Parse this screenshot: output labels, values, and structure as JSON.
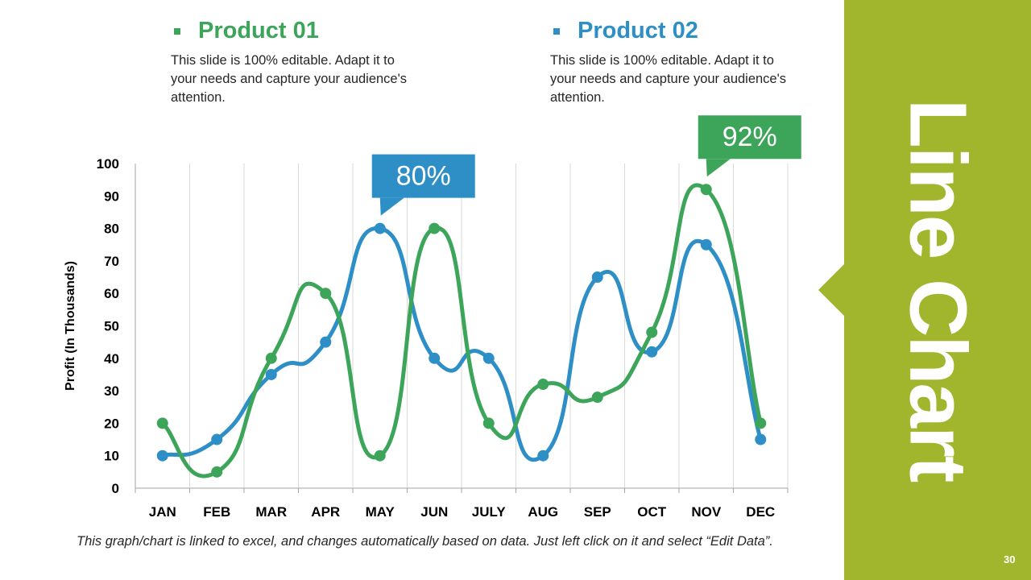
{
  "legend": [
    {
      "title": "Product 01",
      "color": "#3da55a",
      "desc": "This slide is 100% editable. Adapt it to your needs and capture your audience's attention."
    },
    {
      "title": "Product 02",
      "color": "#2e8fc6",
      "desc": "This slide is 100% editable. Adapt it to your needs and capture your audience's attention."
    }
  ],
  "side_title": "Line Chart",
  "page_number": "30",
  "footnote": "This graph/chart is linked to excel, and changes automatically based on data. Just left click on it and select “Edit Data”.",
  "chart_data": {
    "type": "line",
    "title": "",
    "xlabel": "",
    "ylabel": "Profit (In Thousands)",
    "ylim": [
      0,
      100
    ],
    "yticks": [
      0,
      10,
      20,
      30,
      40,
      50,
      60,
      70,
      80,
      90,
      100
    ],
    "categories": [
      "JAN",
      "FEB",
      "MAR",
      "APR",
      "MAY",
      "JUN",
      "JULY",
      "AUG",
      "SEP",
      "OCT",
      "NOV",
      "DEC"
    ],
    "grid": "vertical",
    "series": [
      {
        "name": "Product 02",
        "color": "#2e8fc6",
        "values": [
          10,
          15,
          35,
          45,
          80,
          40,
          40,
          10,
          65,
          42,
          75,
          15
        ]
      },
      {
        "name": "Product 01",
        "color": "#3da55a",
        "values": [
          20,
          5,
          40,
          60,
          10,
          80,
          20,
          32,
          28,
          48,
          92,
          20
        ]
      }
    ],
    "callouts": [
      {
        "text": "80%",
        "series": "Product 02",
        "category": "MAY",
        "color": "#2e8fc6"
      },
      {
        "text": "92%",
        "series": "Product 01",
        "category": "NOV",
        "color": "#3da55a"
      }
    ]
  }
}
